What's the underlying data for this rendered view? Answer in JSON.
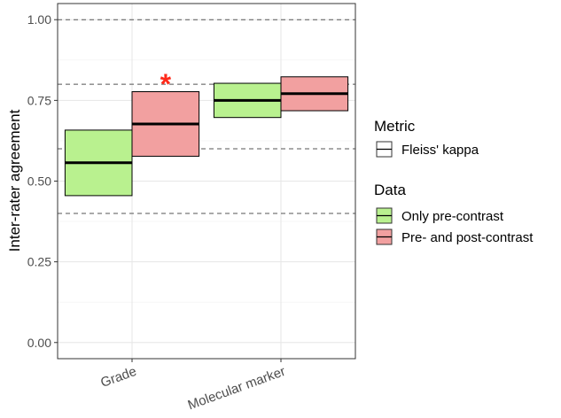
{
  "chart_data": {
    "type": "crossbar",
    "ylabel": "Inter-rater agreement",
    "ylim": [
      -0.05,
      1.05
    ],
    "y_ticks": [
      "0.00",
      "0.25",
      "0.50",
      "0.75",
      "1.00"
    ],
    "y_tick_values": [
      0,
      0.25,
      0.5,
      0.75,
      1.0
    ],
    "categories": [
      "Grade",
      "Molecular marker"
    ],
    "reference_lines": [
      0.4,
      0.6,
      0.8,
      1.0
    ],
    "series": [
      {
        "name": "Only pre-contrast",
        "color": "#b9f18f",
        "points": [
          {
            "category": "Grade",
            "center": 0.557,
            "lower": 0.455,
            "upper": 0.658
          },
          {
            "category": "Molecular marker",
            "center": 0.75,
            "lower": 0.697,
            "upper": 0.803
          }
        ]
      },
      {
        "name": "Pre- and post-contrast",
        "color": "#f2a0a0",
        "points": [
          {
            "category": "Grade",
            "center": 0.677,
            "lower": 0.577,
            "upper": 0.777
          },
          {
            "category": "Molecular marker",
            "center": 0.771,
            "lower": 0.718,
            "upper": 0.823
          }
        ]
      }
    ],
    "annotations": [
      {
        "text": "*",
        "category": "Grade",
        "series": "Pre- and post-contrast",
        "y": 0.82,
        "color": "#ff2a1a"
      }
    ],
    "legend": {
      "placement": "right",
      "metric_title": "Metric",
      "metric_entries": [
        "Fleiss' kappa"
      ],
      "data_title": "Data",
      "data_entries": [
        "Only pre-contrast",
        "Pre- and post-contrast"
      ]
    },
    "grid": true
  }
}
